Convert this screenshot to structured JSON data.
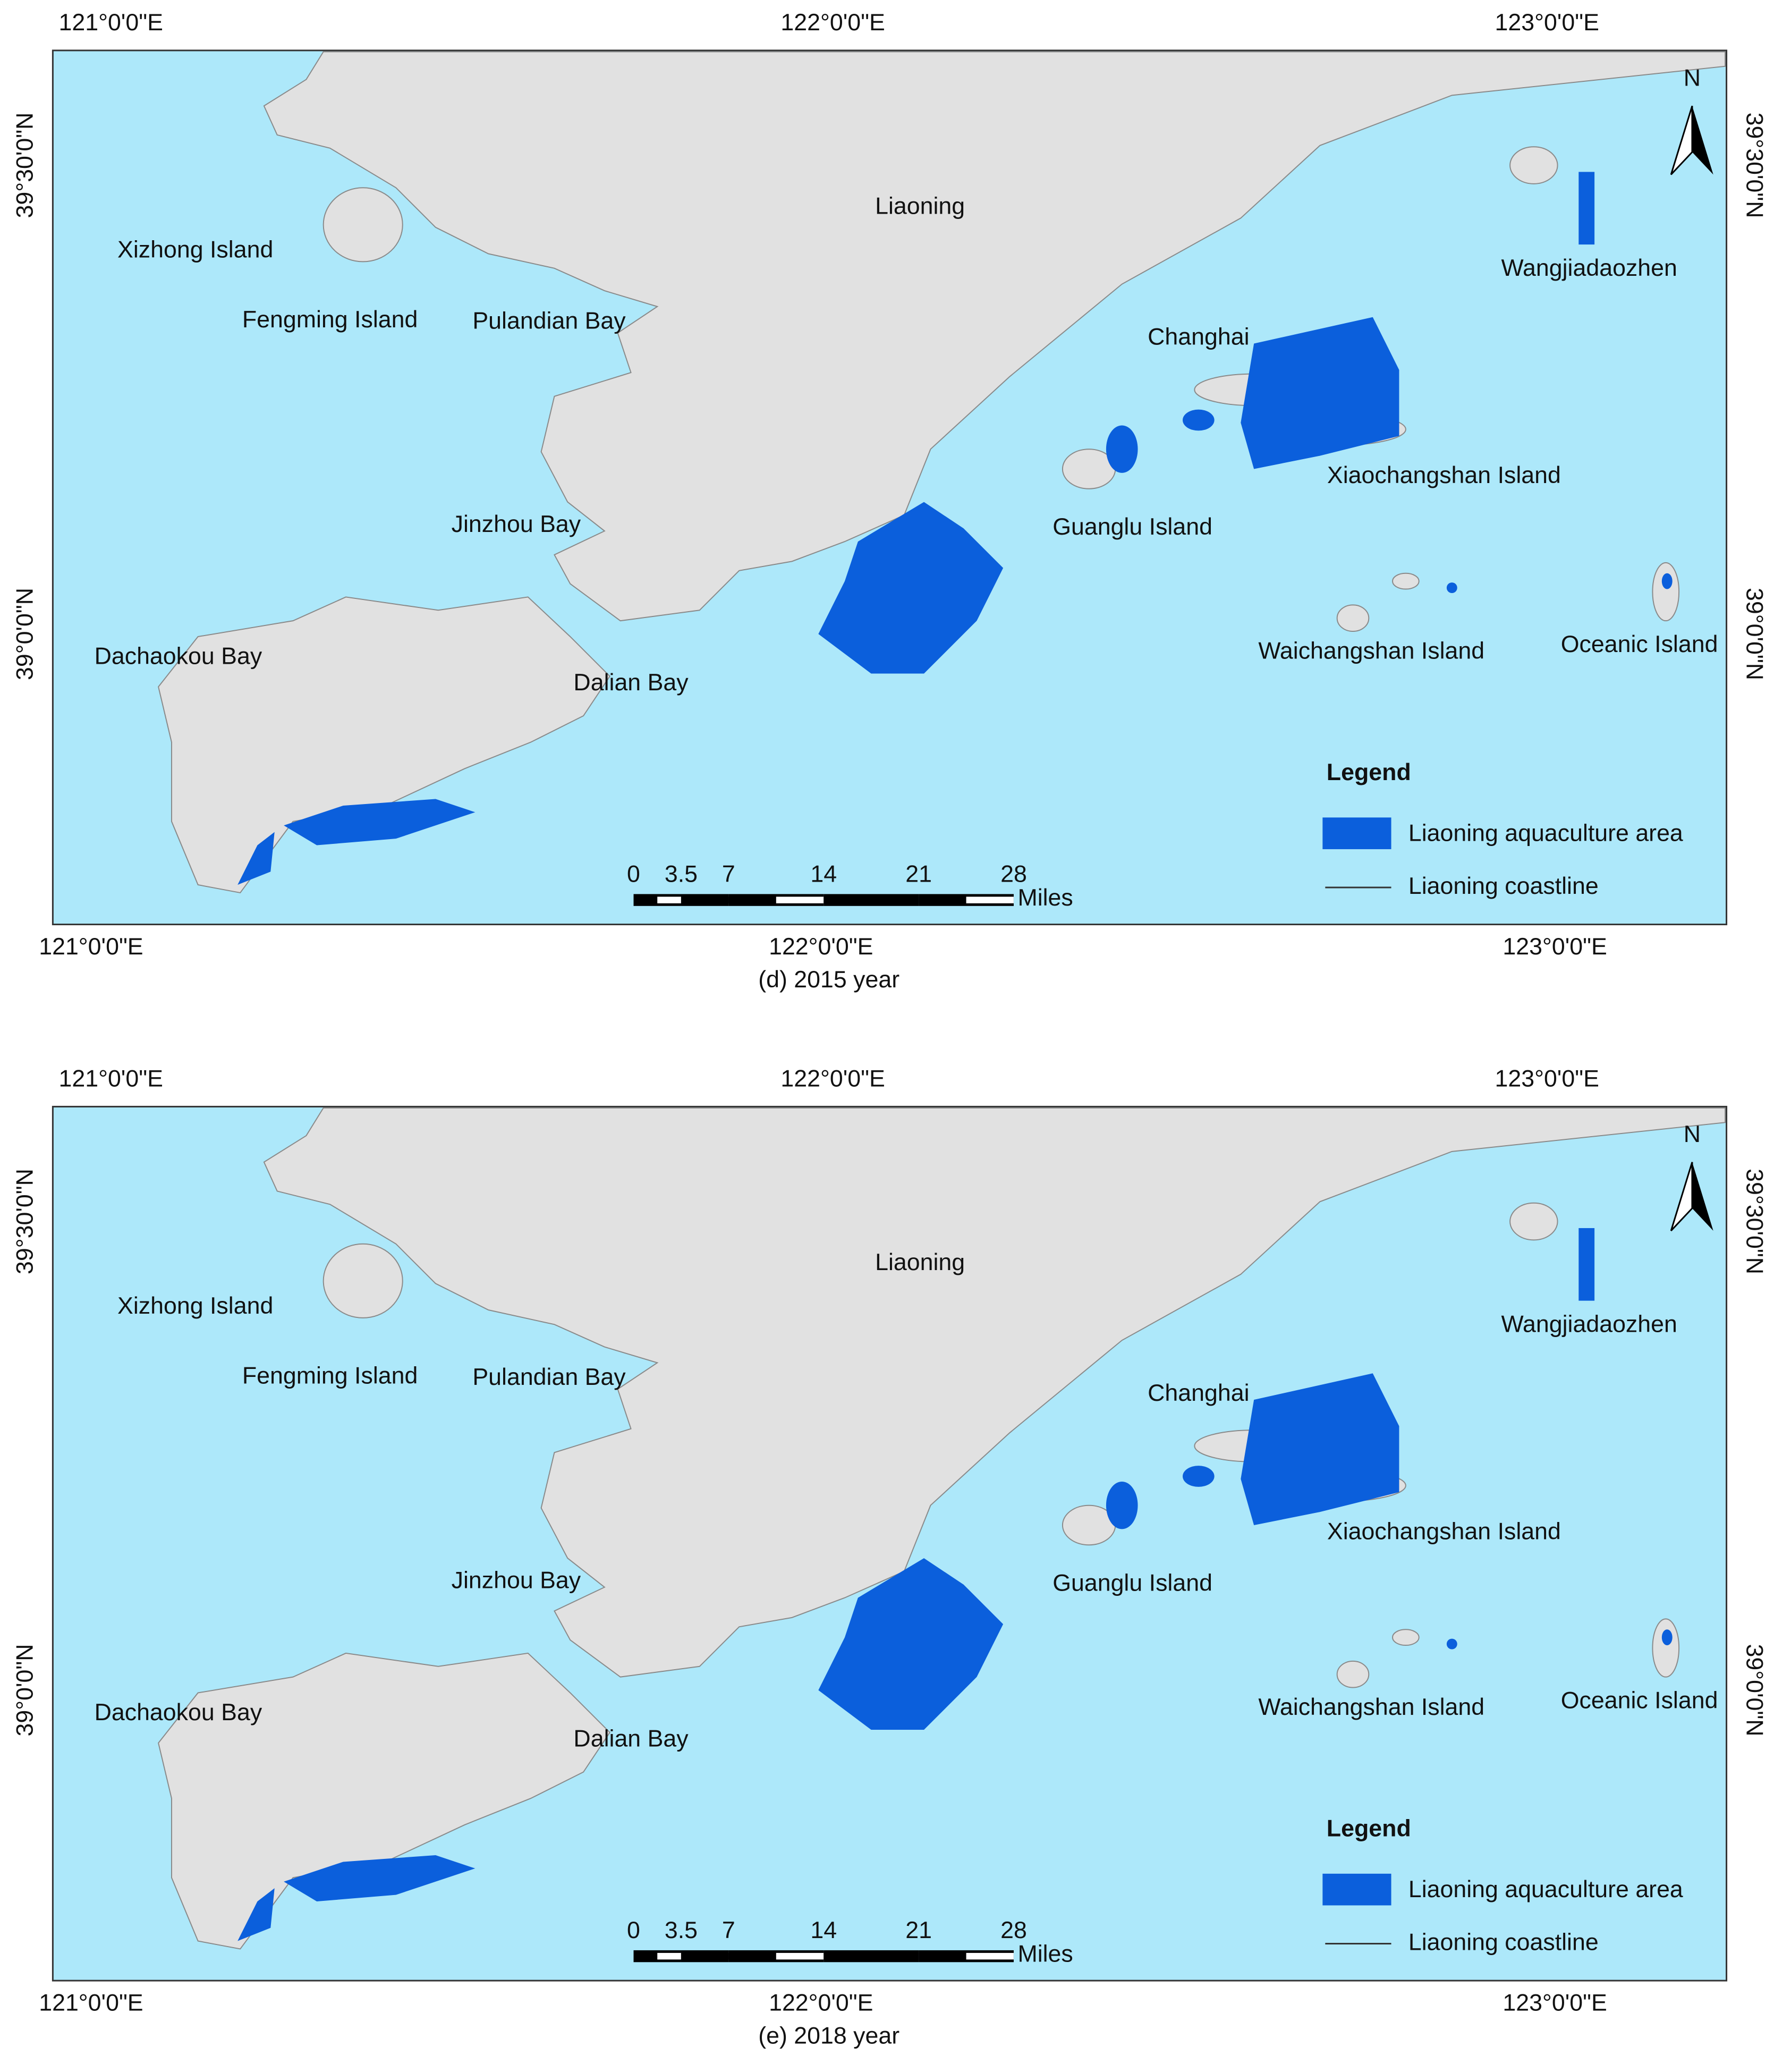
{
  "maps": [
    {
      "caption": "(d) 2015 year",
      "top_lon_labels": [
        "121°0'0\"E",
        "122°0'0\"E",
        "123°0'0\"E"
      ],
      "bottom_lon_labels": [
        "121°0'0\"E",
        "122°0'0\"E",
        "123°0'0\"E"
      ],
      "left_lat_labels": [
        "39°30'0\"N",
        "39°0'0\"N"
      ],
      "right_lat_labels": [
        "39°30'0\"N",
        "39°0'0\"N"
      ],
      "places": [
        "Liaoning",
        "Xizhong Island",
        "Fengming Island",
        "Pulandian Bay",
        "Jinzhou Bay",
        "Dachaokou Bay",
        "Dalian Bay",
        "Changhai",
        "Wangjiadaozhen",
        "Xiaochangshan Island",
        "Guanglu Island",
        "Waichangshan Island",
        "Oceanic Island"
      ],
      "north": "N",
      "legend": {
        "title": "Legend",
        "items": [
          "Liaoning aquaculture area",
          "Liaoning coastline"
        ]
      },
      "scale": {
        "ticks": [
          0,
          3.5,
          7,
          14,
          21,
          28
        ],
        "unit": "Miles"
      }
    },
    {
      "caption": "(e) 2018 year",
      "top_lon_labels": [
        "121°0'0\"E",
        "122°0'0\"E",
        "123°0'0\"E"
      ],
      "bottom_lon_labels": [
        "121°0'0\"E",
        "122°0'0\"E",
        "123°0'0\"E"
      ],
      "left_lat_labels": [
        "39°30'0\"N",
        "39°0'0\"N"
      ],
      "right_lat_labels": [
        "39°30'0\"N",
        "39°0'0\"N"
      ],
      "places": [
        "Liaoning",
        "Xizhong Island",
        "Fengming Island",
        "Pulandian Bay",
        "Jinzhou Bay",
        "Dachaokou Bay",
        "Dalian Bay",
        "Changhai",
        "Wangjiadaozhen",
        "Xiaochangshan Island",
        "Guanglu Island",
        "Waichangshan Island",
        "Oceanic Island"
      ],
      "north": "N",
      "legend": {
        "title": "Legend",
        "items": [
          "Liaoning aquaculture area",
          "Liaoning coastline"
        ]
      },
      "scale": {
        "ticks": [
          0,
          3.5,
          7,
          14,
          21,
          28
        ],
        "unit": "Miles"
      }
    }
  ]
}
